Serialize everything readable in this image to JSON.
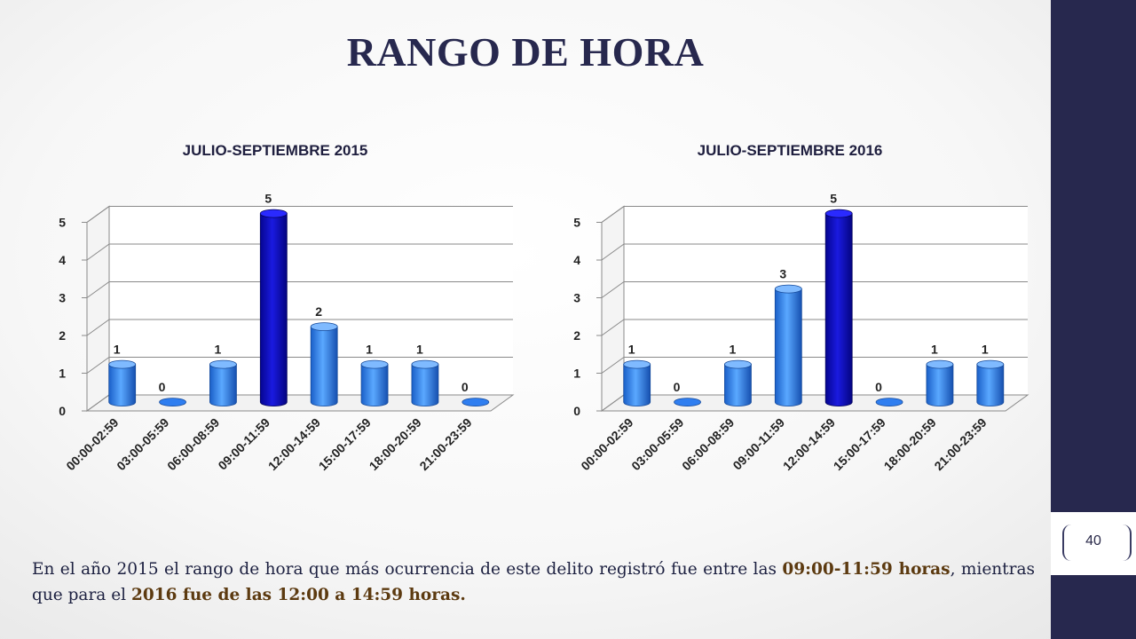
{
  "page": {
    "title": "RANGO DE HORA",
    "page_number": "40",
    "description": {
      "part1": "En el año 2015 el rango de hora que más ocurrencia de este delito registró fue entre las ",
      "bold1": "09:00-11:59 horas",
      "part2": ",  mientras que para el ",
      "bold2": "2016 fue de las 12:00 a 14:59 horas."
    }
  },
  "colors": {
    "sidebar": "#27284e",
    "bar_light": "#2f7ef0",
    "bar_highlight": "#0a0ab8",
    "bold_text": "#5c3a10"
  },
  "chart_data": [
    {
      "type": "bar",
      "title": "JULIO-SEPTIEMBRE 2015",
      "categories": [
        "00:00-02:59",
        "03:00-05:59",
        "06:00-08:59",
        "09:00-11:59",
        "12:00-14:59",
        "15:00-17:59",
        "18:00-20:59",
        "21:00-23:59"
      ],
      "values": [
        1,
        0,
        1,
        5,
        2,
        1,
        1,
        0
      ],
      "highlight_index": 3,
      "yticks": [
        0,
        1,
        2,
        3,
        4,
        5
      ],
      "ylim": [
        0,
        5
      ],
      "xlabel": "",
      "ylabel": "",
      "grid": true,
      "style": "3d-cylinder"
    },
    {
      "type": "bar",
      "title": "JULIO-SEPTIEMBRE 2016",
      "categories": [
        "00:00-02:59",
        "03:00-05:59",
        "06:00-08:59",
        "09:00-11:59",
        "12:00-14:59",
        "15:00-17:59",
        "18:00-20:59",
        "21:00-23:59"
      ],
      "values": [
        1,
        0,
        1,
        3,
        5,
        0,
        1,
        1
      ],
      "highlight_index": 4,
      "yticks": [
        0,
        1,
        2,
        3,
        4,
        5
      ],
      "ylim": [
        0,
        5
      ],
      "xlabel": "",
      "ylabel": "",
      "grid": true,
      "style": "3d-cylinder"
    }
  ]
}
